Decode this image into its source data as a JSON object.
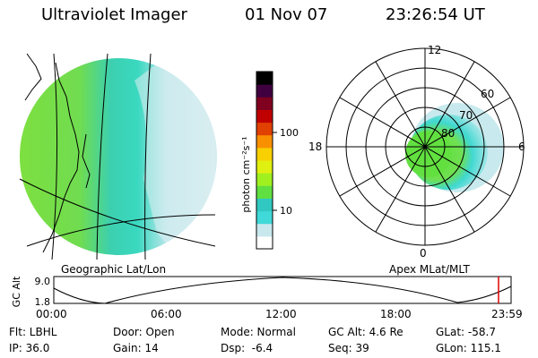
{
  "header": {
    "instrument": "Ultraviolet Imager",
    "date": "01 Nov 07",
    "time": "23:26:54 UT"
  },
  "geo_panel": {
    "caption": "Geographic Lat/Lon"
  },
  "colorbar": {
    "unit_label": "photon cm⁻²s⁻¹",
    "ticks": [
      "100",
      "10"
    ],
    "scale": "log",
    "colors": [
      "#ffffff",
      "#c8e8ee",
      "#40d8d8",
      "#30c8c0",
      "#60e040",
      "#a0f020",
      "#e0f010",
      "#f8d000",
      "#f89000",
      "#e04000",
      "#c00000",
      "#800020",
      "#400040",
      "#000000"
    ]
  },
  "polar_panel": {
    "caption": "Apex MLat/MLT",
    "lat_labels": [
      "80",
      "70",
      "60"
    ],
    "mlt_labels": {
      "top": "12",
      "left": "18",
      "right": "6",
      "bottom": "0"
    }
  },
  "altitude_track": {
    "ylabel": "GC Alt",
    "ymax_label": "9.0",
    "ymin_label": "1.8",
    "current_marker_color": "#e00000",
    "x_ticks": [
      "00:00",
      "06:00",
      "12:00",
      "18:00",
      "23:59"
    ]
  },
  "status": {
    "filter": "Flt: LBHL",
    "ip": "IP: 36.0",
    "door": "Door: Open",
    "gain": "Gain: 14",
    "mode": "Mode: Normal",
    "dsp": "Dsp:  -6.4",
    "gc_alt": "GC Alt: 4.6 Re",
    "seq": "Seq: 39",
    "glat": "GLat: -58.7",
    "glon": "GLon: 115.1"
  }
}
